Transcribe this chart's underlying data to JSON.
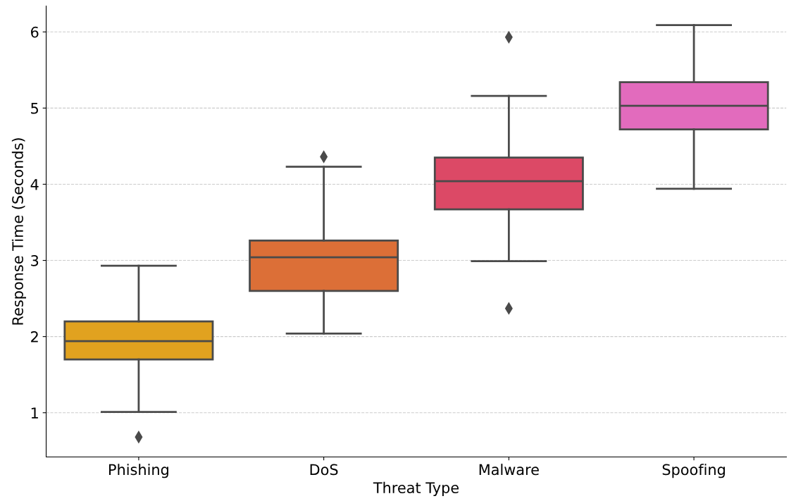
{
  "chart_data": {
    "type": "box",
    "xlabel": "Threat Type",
    "ylabel": "Response Time (Seconds)",
    "categories": [
      "Phishing",
      "DoS",
      "Malware",
      "Spoofing"
    ],
    "colors": [
      "#e1a21f",
      "#dc6f37",
      "#dc4966",
      "#e26bbd"
    ],
    "boxes": [
      {
        "low": 1.01,
        "q1": 1.7,
        "median": 1.94,
        "q3": 2.2,
        "high": 2.93,
        "outliers": [
          0.68
        ]
      },
      {
        "low": 2.04,
        "q1": 2.6,
        "median": 3.04,
        "q3": 3.26,
        "high": 4.23,
        "outliers": [
          4.36
        ]
      },
      {
        "low": 2.99,
        "q1": 3.67,
        "median": 4.04,
        "q3": 4.35,
        "high": 5.16,
        "outliers": [
          5.93,
          2.37
        ]
      },
      {
        "low": 3.94,
        "q1": 4.72,
        "median": 5.03,
        "q3": 5.34,
        "high": 6.09
      }
    ],
    "ylim": [
      0.42,
      6.34
    ],
    "yticks": [
      1,
      2,
      3,
      4,
      5,
      6
    ],
    "grid": "y",
    "marker": "diamond"
  }
}
